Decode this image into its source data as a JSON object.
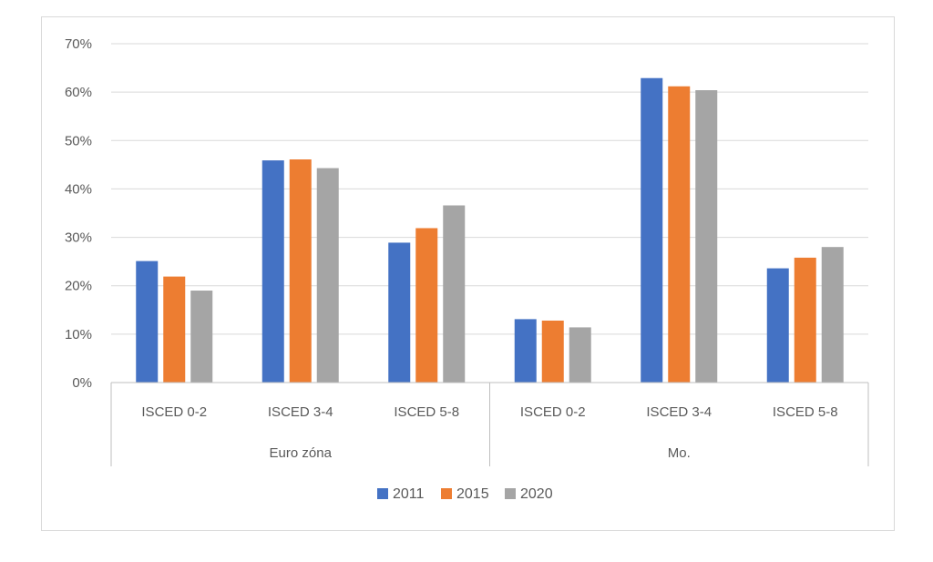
{
  "chart_data": {
    "type": "bar",
    "title": "",
    "xlabel": "",
    "ylabel": "",
    "ylim": [
      0,
      0.7
    ],
    "yticks": [
      0,
      0.1,
      0.2,
      0.3,
      0.4,
      0.5,
      0.6,
      0.7
    ],
    "ytick_labels": [
      "0%",
      "10%",
      "20%",
      "30%",
      "40%",
      "50%",
      "60%",
      "70%"
    ],
    "grid": true,
    "legend_position": "bottom",
    "groups": [
      {
        "label": "Euro zóna",
        "categories": [
          "ISCED 0-2",
          "ISCED 3-4",
          "ISCED 5-8"
        ]
      },
      {
        "label": "Mo.",
        "categories": [
          "ISCED 0-2",
          "ISCED 3-4",
          "ISCED 5-8"
        ]
      }
    ],
    "categories": [
      "ISCED 0-2",
      "ISCED 3-4",
      "ISCED 5-8",
      "ISCED 0-2",
      "ISCED 3-4",
      "ISCED 5-8"
    ],
    "series": [
      {
        "name": "2011",
        "color": "#4472c4",
        "values": [
          0.251,
          0.459,
          0.289,
          0.131,
          0.629,
          0.236
        ]
      },
      {
        "name": "2015",
        "color": "#ed7d31",
        "values": [
          0.219,
          0.461,
          0.319,
          0.128,
          0.612,
          0.258
        ]
      },
      {
        "name": "2020",
        "color": "#a5a5a5",
        "values": [
          0.19,
          0.443,
          0.366,
          0.114,
          0.604,
          0.28
        ]
      }
    ]
  }
}
